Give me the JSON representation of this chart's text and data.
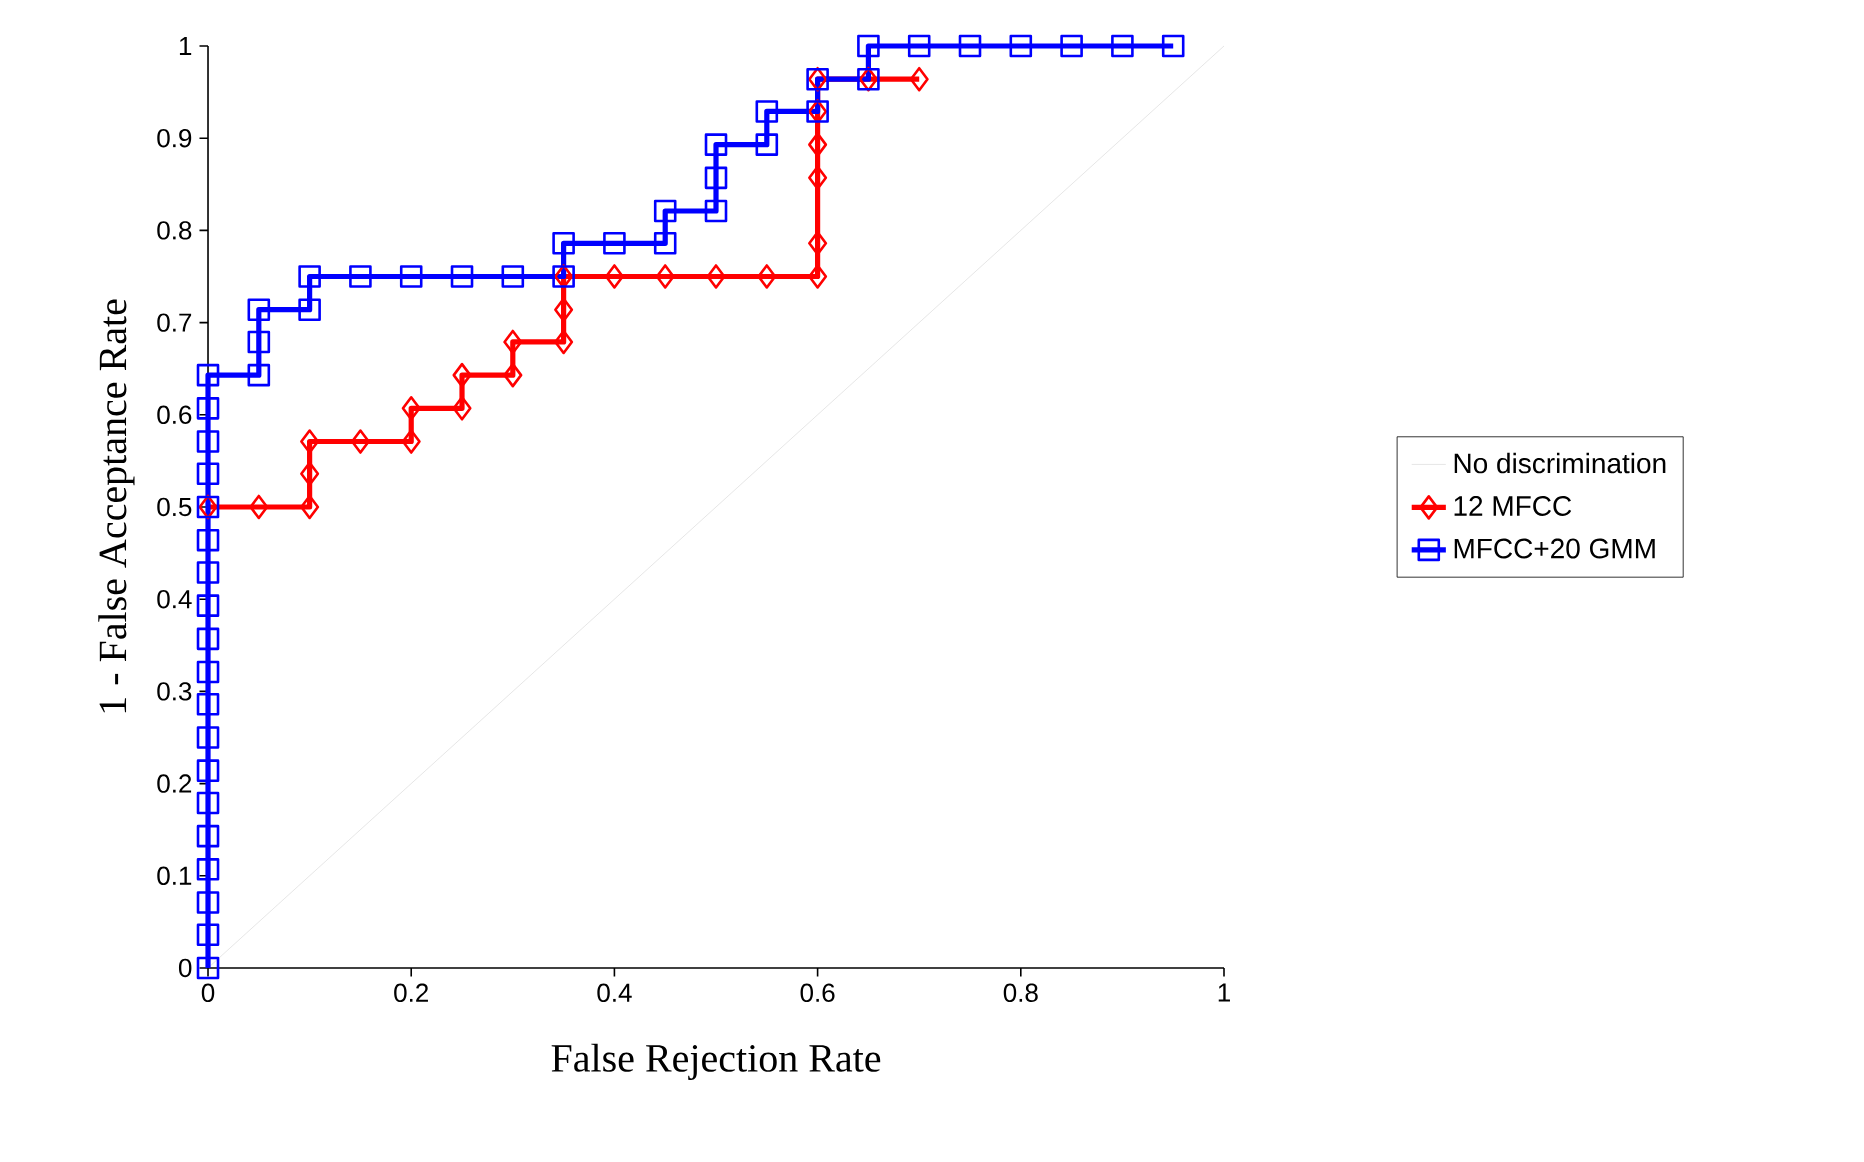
{
  "chart_data": {
    "type": "line",
    "xlabel": "False Rejection Rate",
    "ylabel": "1 - False Acceptance Rate",
    "xlim": [
      0,
      1
    ],
    "ylim": [
      0,
      1
    ],
    "xticks": [
      0,
      0.2,
      0.4,
      0.6,
      0.8,
      1
    ],
    "yticks": [
      0,
      0.1,
      0.2,
      0.3,
      0.4,
      0.5,
      0.6,
      0.7,
      0.8,
      0.9,
      1
    ],
    "grid": false,
    "legend": "right",
    "line_style": "solid",
    "series": [
      {
        "name": "No discrimination",
        "color": "#c0c0c0",
        "marker": "none",
        "x": [
          0,
          1
        ],
        "values": [
          0,
          1
        ]
      },
      {
        "name": "12 MFCC",
        "color": "#ff0000",
        "marker": "diamond",
        "x": [
          0,
          0.05,
          0.1,
          0.1,
          0.1,
          0.15,
          0.2,
          0.2,
          0.25,
          0.25,
          0.3,
          0.3,
          0.35,
          0.35,
          0.35,
          0.4,
          0.45,
          0.5,
          0.55,
          0.6,
          0.6,
          0.6,
          0.6,
          0.6,
          0.6,
          0.65,
          0.7
        ],
        "values": [
          0.5,
          0.5,
          0.5,
          0.536,
          0.571,
          0.571,
          0.571,
          0.607,
          0.607,
          0.643,
          0.643,
          0.679,
          0.679,
          0.714,
          0.75,
          0.75,
          0.75,
          0.75,
          0.75,
          0.75,
          0.786,
          0.857,
          0.893,
          0.929,
          0.964,
          0.964,
          0.964
        ]
      },
      {
        "name": "MFCC+20 GMM",
        "color": "#0000ff",
        "marker": "square",
        "x": [
          0,
          0,
          0,
          0,
          0,
          0,
          0,
          0,
          0,
          0,
          0,
          0,
          0,
          0,
          0,
          0,
          0,
          0,
          0,
          0.05,
          0.05,
          0.05,
          0.1,
          0.1,
          0.15,
          0.2,
          0.25,
          0.3,
          0.35,
          0.35,
          0.4,
          0.45,
          0.45,
          0.5,
          0.5,
          0.5,
          0.55,
          0.55,
          0.6,
          0.6,
          0.65,
          0.65,
          0.7,
          0.75,
          0.8,
          0.85,
          0.9,
          0.95
        ],
        "values": [
          0,
          0.036,
          0.071,
          0.107,
          0.143,
          0.179,
          0.214,
          0.25,
          0.286,
          0.321,
          0.357,
          0.393,
          0.429,
          0.464,
          0.5,
          0.536,
          0.571,
          0.607,
          0.643,
          0.643,
          0.679,
          0.714,
          0.714,
          0.75,
          0.75,
          0.75,
          0.75,
          0.75,
          0.75,
          0.786,
          0.786,
          0.786,
          0.821,
          0.821,
          0.857,
          0.893,
          0.893,
          0.929,
          0.929,
          0.964,
          0.964,
          1,
          1,
          1,
          1,
          1,
          1,
          1
        ]
      }
    ]
  }
}
